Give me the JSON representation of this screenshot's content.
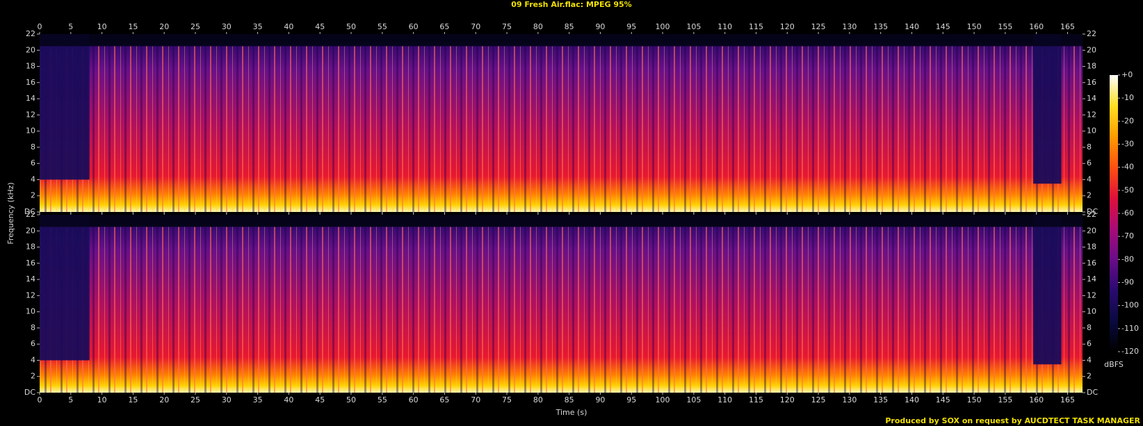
{
  "chart_data": {
    "type": "spectrogram",
    "title": "09 Fresh Air.flac: MPEG 95%",
    "x_label": "Time (s)",
    "y_label": "Frequency (kHz)",
    "xlim": [
      0,
      167.4
    ],
    "xticks": [
      0,
      5,
      10,
      15,
      20,
      25,
      30,
      35,
      40,
      45,
      50,
      55,
      60,
      65,
      70,
      75,
      80,
      85,
      90,
      95,
      100,
      105,
      110,
      115,
      120,
      125,
      130,
      135,
      140,
      145,
      150,
      155,
      160,
      165
    ],
    "ylim": [
      0,
      22
    ],
    "yticks": [
      {
        "value": 0,
        "label": "DC"
      },
      2,
      4,
      6,
      8,
      10,
      12,
      14,
      16,
      18,
      20,
      22
    ],
    "colorbar": {
      "label": "dBFS",
      "lim": [
        -120,
        0
      ],
      "ticks": [
        {
          "value": 0,
          "label": "+0"
        },
        -10,
        -20,
        -30,
        -40,
        -50,
        -60,
        -70,
        -80,
        -90,
        -100,
        -110,
        -120
      ],
      "colors": [
        "#000000",
        "#0a0a40",
        "#2a0a70",
        "#6a0c88",
        "#a80c78",
        "#e0103a",
        "#ff5010",
        "#ff9c00",
        "#ffe020",
        "#ffffff"
      ]
    },
    "credit": "Produced by SOX on request by AUCDTECT TASK MANAGER"
  }
}
